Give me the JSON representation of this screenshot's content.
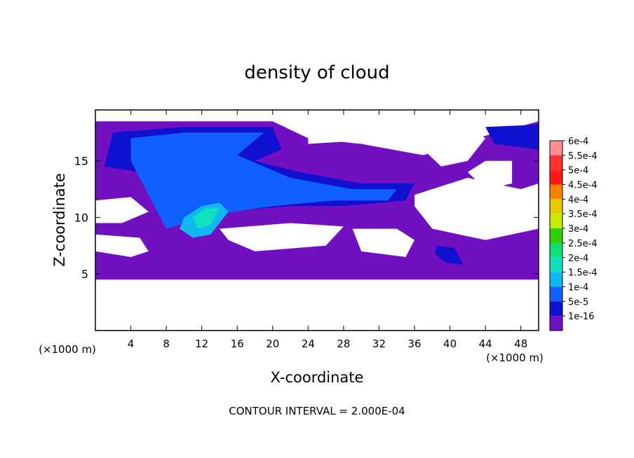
{
  "chart_data": {
    "type": "heatmap",
    "title": "density of cloud",
    "xlabel": "X-coordinate",
    "ylabel": "Z-coordinate",
    "x_unit_left": "(×1000 m)",
    "x_unit_right": "(×1000 m)",
    "footer": "CONTOUR INTERVAL = 2.000E-04",
    "xlim": [
      0,
      50
    ],
    "ylim": [
      0,
      19.5
    ],
    "x_ticks": [
      "4",
      "8",
      "12",
      "16",
      "20",
      "24",
      "28",
      "32",
      "36",
      "40",
      "44",
      "48"
    ],
    "x_tick_values": [
      4,
      8,
      12,
      16,
      20,
      24,
      28,
      32,
      36,
      40,
      44,
      48
    ],
    "y_ticks": [
      "5",
      "10",
      "15"
    ],
    "y_tick_values": [
      5,
      10,
      15
    ],
    "colorbar": {
      "labels": [
        "6e-4",
        "5.5e-4",
        "5e-4",
        "4.5e-4",
        "4e-4",
        "3.5e-4",
        "3e-4",
        "2.5e-4",
        "2e-4",
        "1.5e-4",
        "1e-4",
        "5e-5",
        "1e-16"
      ],
      "colors": [
        "#ff9090",
        "#ff3030",
        "#ff1818",
        "#ff8000",
        "#e8c800",
        "#c8e800",
        "#30d000",
        "#10e070",
        "#10e0c0",
        "#10b8f0",
        "#1060ff",
        "#1010d0",
        "#7010c0"
      ]
    },
    "regions": [
      {
        "level": "1e-16",
        "x": [
          0,
          20,
          24,
          30,
          37,
          43,
          50,
          50,
          40,
          30,
          20,
          10,
          0
        ],
        "y": [
          18.5,
          18.5,
          17,
          16.5,
          15.5,
          17,
          18.5,
          4.5,
          4.5,
          4.5,
          4.5,
          4.5,
          4.5
        ]
      },
      {
        "level": "5e-5",
        "x": [
          2,
          10,
          20,
          21,
          18,
          23,
          30,
          36,
          35,
          28,
          22,
          14,
          8,
          5,
          1
        ],
        "y": [
          17.5,
          18,
          18,
          16,
          15,
          14,
          13,
          13,
          11.5,
          11,
          11,
          10.5,
          9,
          14,
          14.5
        ]
      },
      {
        "level": "1e-4",
        "x": [
          4,
          10,
          19,
          16,
          22,
          29,
          34,
          33,
          27,
          20,
          13,
          8,
          4
        ],
        "y": [
          17,
          17.5,
          17.5,
          15.5,
          13.5,
          12.5,
          12.5,
          11.5,
          11.5,
          11,
          10.2,
          9,
          15
        ]
      },
      {
        "level": "1.5e-4",
        "x": [
          10,
          12,
          14,
          15,
          13,
          11,
          9.5
        ],
        "y": [
          10,
          11,
          11.3,
          10.5,
          8.5,
          8.2,
          9
        ]
      },
      {
        "level": "2e-4",
        "x": [
          11,
          12.5,
          14,
          13,
          11.5
        ],
        "y": [
          10,
          10.8,
          10.8,
          9.3,
          9
        ]
      },
      {
        "level": "5e-5",
        "x": [
          38.5,
          40.5,
          41.5,
          39.5,
          38.3
        ],
        "y": [
          7.5,
          7.3,
          5.8,
          6,
          6.8
        ]
      },
      {
        "level": "5e-5",
        "x": [
          44,
          50,
          50,
          45
        ],
        "y": [
          18,
          18.2,
          16,
          16.5
        ]
      }
    ],
    "clear_regions": [
      {
        "x": [
          24,
          30,
          34,
          36,
          34,
          28,
          24
        ],
        "y": [
          16.5,
          16.8,
          17,
          18.6,
          18.6,
          18.6,
          17.5
        ]
      },
      {
        "x": [
          38,
          40,
          42,
          44,
          42,
          39,
          37
        ],
        "y": [
          18.6,
          18.6,
          18,
          17,
          15,
          14.5,
          16
        ]
      },
      {
        "x": [
          44,
          47,
          47,
          44,
          42
        ],
        "y": [
          15,
          15,
          13,
          12.5,
          14
        ]
      },
      {
        "x": [
          36,
          42,
          48,
          50,
          50,
          44,
          38,
          36
        ],
        "y": [
          12,
          13.5,
          12.5,
          13,
          9,
          8,
          9,
          11
        ]
      },
      {
        "x": [
          0,
          4,
          6,
          3,
          0
        ],
        "y": [
          11.5,
          11.8,
          10.5,
          9.5,
          9.5
        ]
      },
      {
        "x": [
          0,
          5,
          6,
          4,
          0
        ],
        "y": [
          8.5,
          8.2,
          7,
          6.5,
          7
        ]
      },
      {
        "x": [
          14,
          22,
          28,
          26,
          18,
          15
        ],
        "y": [
          9,
          9.5,
          9.2,
          7.5,
          7,
          8
        ]
      },
      {
        "x": [
          29,
          34,
          36,
          35,
          30
        ],
        "y": [
          9,
          9,
          8,
          6.5,
          7
        ]
      }
    ]
  }
}
